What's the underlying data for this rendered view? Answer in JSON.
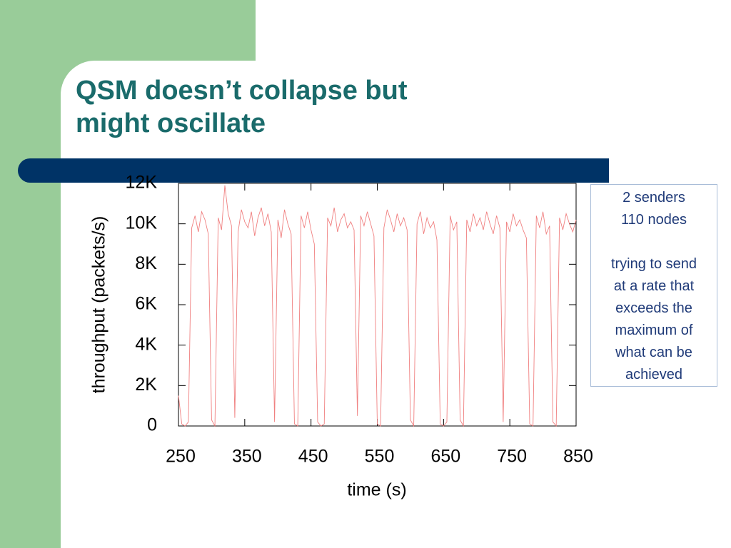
{
  "slide": {
    "title": [
      "QSM doesn’t collapse but",
      "might oscillate"
    ]
  },
  "chart_data": {
    "type": "line",
    "xlabel": "time (s)",
    "ylabel": "throughput (packets/s)",
    "x": [
      250,
      255,
      260,
      265,
      270,
      275,
      280,
      285,
      290,
      295,
      300,
      305,
      310,
      315,
      320,
      325,
      330,
      335,
      340,
      345,
      350,
      355,
      360,
      365,
      370,
      375,
      380,
      385,
      390,
      395,
      400,
      405,
      410,
      415,
      420,
      425,
      430,
      435,
      440,
      445,
      450,
      455,
      460,
      465,
      470,
      475,
      480,
      485,
      490,
      495,
      500,
      505,
      510,
      515,
      520,
      525,
      530,
      535,
      540,
      545,
      550,
      555,
      560,
      565,
      570,
      575,
      580,
      585,
      590,
      595,
      600,
      605,
      610,
      615,
      620,
      625,
      630,
      635,
      640,
      645,
      650,
      655,
      660,
      665,
      670,
      675,
      680,
      685,
      690,
      695,
      700,
      705,
      710,
      715,
      720,
      725,
      730,
      735,
      740,
      745,
      750,
      755,
      760,
      765,
      770,
      775,
      780,
      785,
      790,
      795,
      800,
      805,
      810,
      815,
      820,
      825,
      830,
      835,
      840,
      845,
      850
    ],
    "values": [
      1500,
      100,
      0,
      200,
      9800,
      10400,
      9600,
      10600,
      10200,
      9500,
      300,
      0,
      10300,
      9700,
      11900,
      10500,
      9900,
      400,
      9600,
      10700,
      10100,
      9800,
      10600,
      9400,
      10300,
      10800,
      9900,
      10500,
      9600,
      200,
      10200,
      9300,
      10700,
      10000,
      9500,
      100,
      0,
      10400,
      9800,
      10600,
      9700,
      9000,
      200,
      0,
      100,
      10300,
      9900,
      10800,
      9600,
      10200,
      10500,
      9800,
      10100,
      9700,
      500,
      10400,
      9900,
      10600,
      10000,
      9400,
      100,
      0,
      9800,
      10700,
      10200,
      9600,
      10500,
      9900,
      10300,
      9700,
      300,
      0,
      10000,
      10600,
      9500,
      10300,
      9800,
      10100,
      9200,
      100,
      0,
      200,
      10400,
      9700,
      10100,
      300,
      0,
      10200,
      9600,
      10500,
      9900,
      10300,
      9700,
      10600,
      10000,
      9500,
      10400,
      9800,
      200,
      10100,
      9600,
      10500,
      9900,
      10200,
      9700,
      9300,
      100,
      0,
      10400,
      9800,
      10600,
      9500,
      9900,
      200,
      0,
      10300,
      9700,
      10500,
      10000,
      9600,
      10200
    ],
    "color": "#f08080",
    "xlim": [
      250,
      850
    ],
    "xticks": [
      250,
      350,
      450,
      550,
      650,
      750,
      850
    ],
    "ylim": [
      0,
      12000
    ],
    "yticks": [
      0,
      {
        "value": 2000,
        "label": "2K"
      },
      {
        "value": 4000,
        "label": "4K"
      },
      {
        "value": 6000,
        "label": "6K"
      },
      {
        "value": 8000,
        "label": "8K"
      },
      {
        "value": 10000,
        "label": "10K"
      },
      {
        "value": 12000,
        "label": "12K"
      }
    ],
    "annotations": [
      [
        "2 senders",
        "110 nodes"
      ],
      [
        "trying to send",
        "at a rate that",
        "exceeds the",
        "maximum of",
        "what can be",
        "achieved"
      ]
    ]
  }
}
